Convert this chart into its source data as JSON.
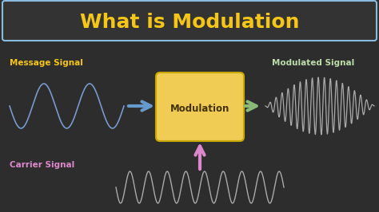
{
  "bg_color": "#2d2d2d",
  "title": "What is Modulation",
  "title_color": "#f5c518",
  "title_fontsize": 18,
  "title_box_facecolor": "#333333",
  "title_box_edgecolor": "#88bbdd",
  "msg_label": "Message Signal",
  "msg_label_color": "#f5c518",
  "carrier_label": "Carrier Signal",
  "carrier_label_color": "#dd88cc",
  "modulated_label": "Modulated Signal",
  "modulated_label_color": "#bbddaa",
  "box_label": "Modulation",
  "box_facecolor": "#f0cc55",
  "box_edgecolor": "#c8a800",
  "box_textcolor": "#443300",
  "arrow_msg_color": "#6699cc",
  "arrow_out_color": "#88bb77",
  "arrow_carrier_color": "#dd88cc",
  "wave_msg_color": "#7799cc",
  "wave_carrier_color": "#aaaaaa",
  "wave_modulated_color": "#aaaaaa"
}
